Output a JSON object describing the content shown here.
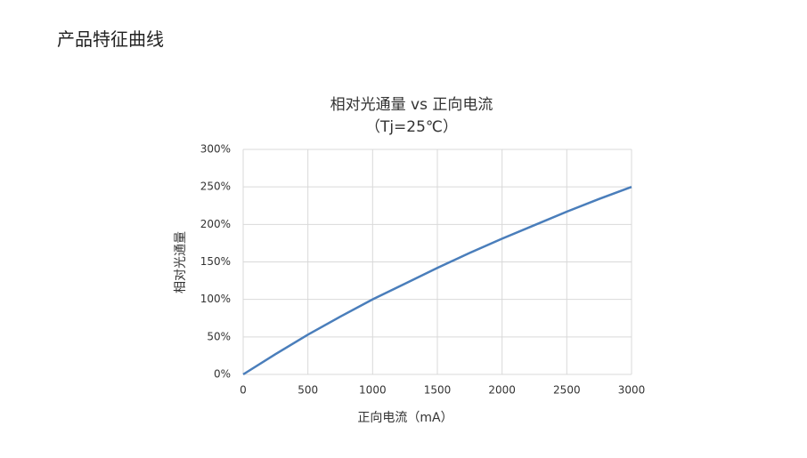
{
  "header": {
    "title": "产品特征曲线"
  },
  "chart_data": {
    "type": "line",
    "title": "相对光通量 vs 正向电流",
    "subtitle": "（Tj=25℃）",
    "x_label": "正向电流（mA）",
    "y_label": "相对光通量",
    "x": [
      0,
      250,
      500,
      750,
      1000,
      1250,
      1500,
      1750,
      2000,
      2250,
      2500,
      2750,
      3000
    ],
    "values": [
      0,
      27,
      53,
      77,
      100,
      121,
      142,
      162,
      181,
      199,
      217,
      234,
      250
    ],
    "color": "#4a7ebb",
    "xlim": [
      0,
      3000
    ],
    "xticks": [
      0,
      500,
      1000,
      1500,
      2000,
      2500,
      3000
    ],
    "ylim": [
      0,
      300
    ],
    "yticks": [
      {
        "value": 0,
        "label": "0%"
      },
      {
        "value": 50,
        "label": "50%"
      },
      {
        "value": 100,
        "label": "100%"
      },
      {
        "value": 150,
        "label": "150%"
      },
      {
        "value": 200,
        "label": "200%"
      },
      {
        "value": 250,
        "label": "250%"
      },
      {
        "value": 300,
        "label": "300%"
      }
    ],
    "grid": true
  }
}
